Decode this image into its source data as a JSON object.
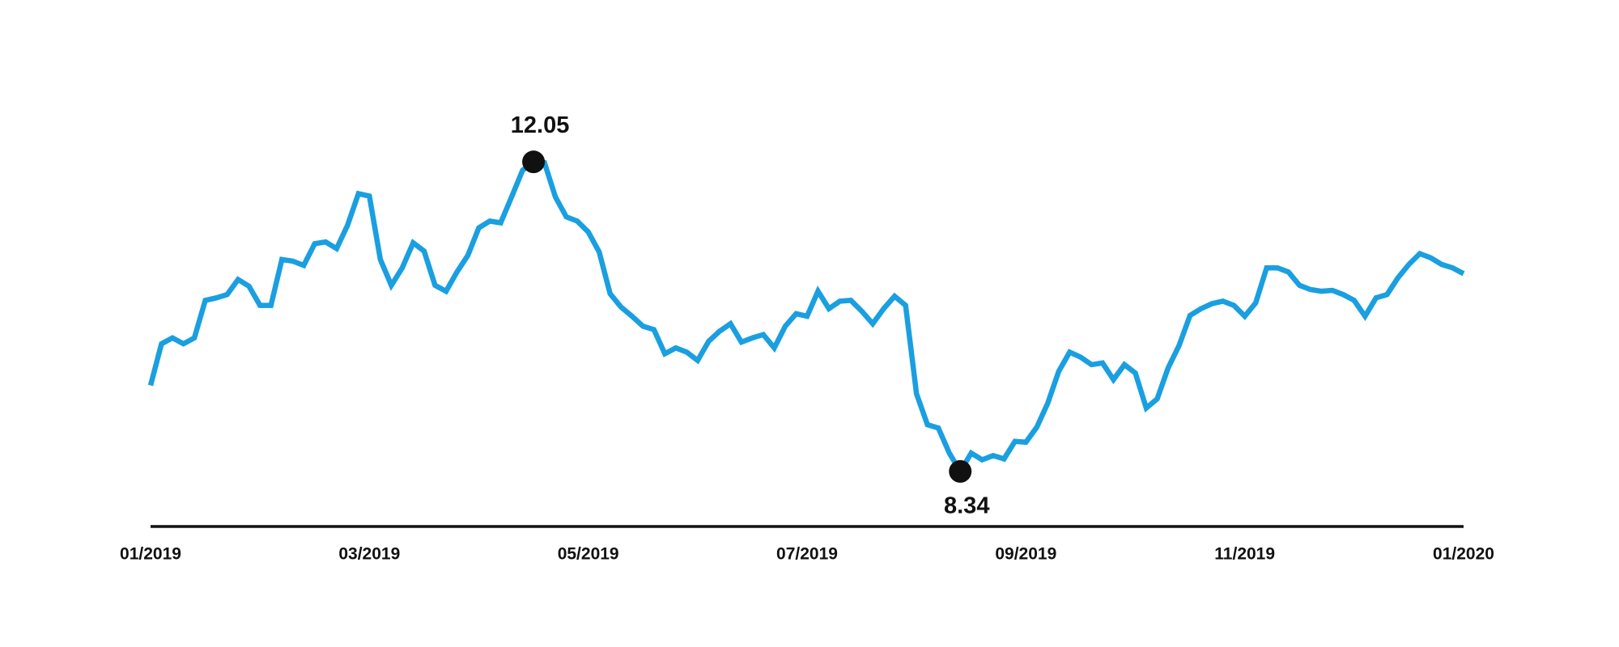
{
  "chart_data": {
    "type": "line",
    "categories": [
      "01/2019",
      null,
      null,
      null,
      null,
      null,
      null,
      null,
      null,
      null,
      null,
      null,
      null,
      null,
      null,
      null,
      null,
      null,
      null,
      null,
      "03/2019",
      null,
      null,
      null,
      null,
      null,
      null,
      null,
      null,
      null,
      null,
      null,
      null,
      null,
      null,
      null,
      null,
      null,
      null,
      null,
      "05/2019",
      null,
      null,
      null,
      null,
      null,
      null,
      null,
      null,
      null,
      null,
      null,
      null,
      null,
      null,
      null,
      null,
      null,
      null,
      null,
      "07/2019",
      null,
      null,
      null,
      null,
      null,
      null,
      null,
      null,
      null,
      null,
      null,
      null,
      null,
      null,
      null,
      null,
      null,
      null,
      null,
      "09/2019",
      null,
      null,
      null,
      null,
      null,
      null,
      null,
      null,
      null,
      null,
      null,
      null,
      null,
      null,
      null,
      null,
      null,
      null,
      null,
      "11/2019",
      null,
      null,
      null,
      null,
      null,
      null,
      null,
      null,
      null,
      null,
      null,
      null,
      null,
      null,
      null,
      null,
      null,
      null,
      null,
      "01/2020"
    ],
    "series": [
      {
        "color": "#1a9fe0",
        "values": [
          9.37,
          9.87,
          9.94,
          9.87,
          9.94,
          10.39,
          10.42,
          10.46,
          10.64,
          10.56,
          10.33,
          10.33,
          10.88,
          10.86,
          10.81,
          11.07,
          11.09,
          11.01,
          11.29,
          11.67,
          11.64,
          10.88,
          10.57,
          10.78,
          11.08,
          10.98,
          10.57,
          10.5,
          10.73,
          10.93,
          11.26,
          11.34,
          11.32,
          11.63,
          11.95,
          12.05,
          12.04,
          11.63,
          11.39,
          11.34,
          11.21,
          10.97,
          10.47,
          10.31,
          10.2,
          10.08,
          10.04,
          9.75,
          9.82,
          9.77,
          9.67,
          9.9,
          10.02,
          10.11,
          9.89,
          9.94,
          9.98,
          9.82,
          10.08,
          10.23,
          10.2,
          10.5,
          10.29,
          10.38,
          10.39,
          10.26,
          10.11,
          10.29,
          10.44,
          10.33,
          9.27,
          8.9,
          8.86,
          8.56,
          8.34,
          8.56,
          8.48,
          8.53,
          8.49,
          8.7,
          8.69,
          8.87,
          9.16,
          9.54,
          9.77,
          9.71,
          9.62,
          9.64,
          9.44,
          9.62,
          9.52,
          9.1,
          9.21,
          9.58,
          9.85,
          10.21,
          10.29,
          10.35,
          10.38,
          10.33,
          10.2,
          10.36,
          10.78,
          10.78,
          10.73,
          10.57,
          10.52,
          10.5,
          10.51,
          10.46,
          10.39,
          10.2,
          10.42,
          10.46,
          10.66,
          10.82,
          10.95,
          10.9,
          10.82,
          10.78,
          10.71
        ]
      }
    ],
    "ylim": [
      7.68,
      13.99
    ]
  }
}
